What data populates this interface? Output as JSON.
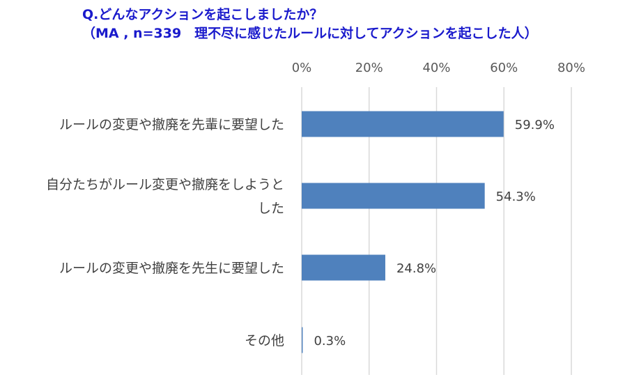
{
  "chart_data": {
    "type": "bar",
    "orientation": "horizontal",
    "title": "Q.どんなアクションを起こしましたか？",
    "subtitle": "（MA , n=339　理不尽に感じたルールに対してアクションを起こした人）",
    "categories": [
      [
        "ルールの変更や撤廃を先輩に要望した"
      ],
      [
        "自分たちがルール変更や撤廃をしようと",
        "した"
      ],
      [
        "ルールの変更や撤廃を先生に要望した"
      ],
      [
        "その他"
      ]
    ],
    "values": [
      59.9,
      54.3,
      24.8,
      0.3
    ],
    "data_labels": [
      "59.9%",
      "54.3%",
      "24.8%",
      "0.3%"
    ],
    "xlim": [
      0,
      80
    ],
    "xticks": [
      0,
      20,
      40,
      60,
      80
    ],
    "xtick_labels": [
      "0%",
      "20%",
      "40%",
      "60%",
      "80%"
    ],
    "axis_position": "top",
    "grid": true,
    "bar_color": "#4f81bd",
    "gridline_color": "#d9d9d9"
  }
}
